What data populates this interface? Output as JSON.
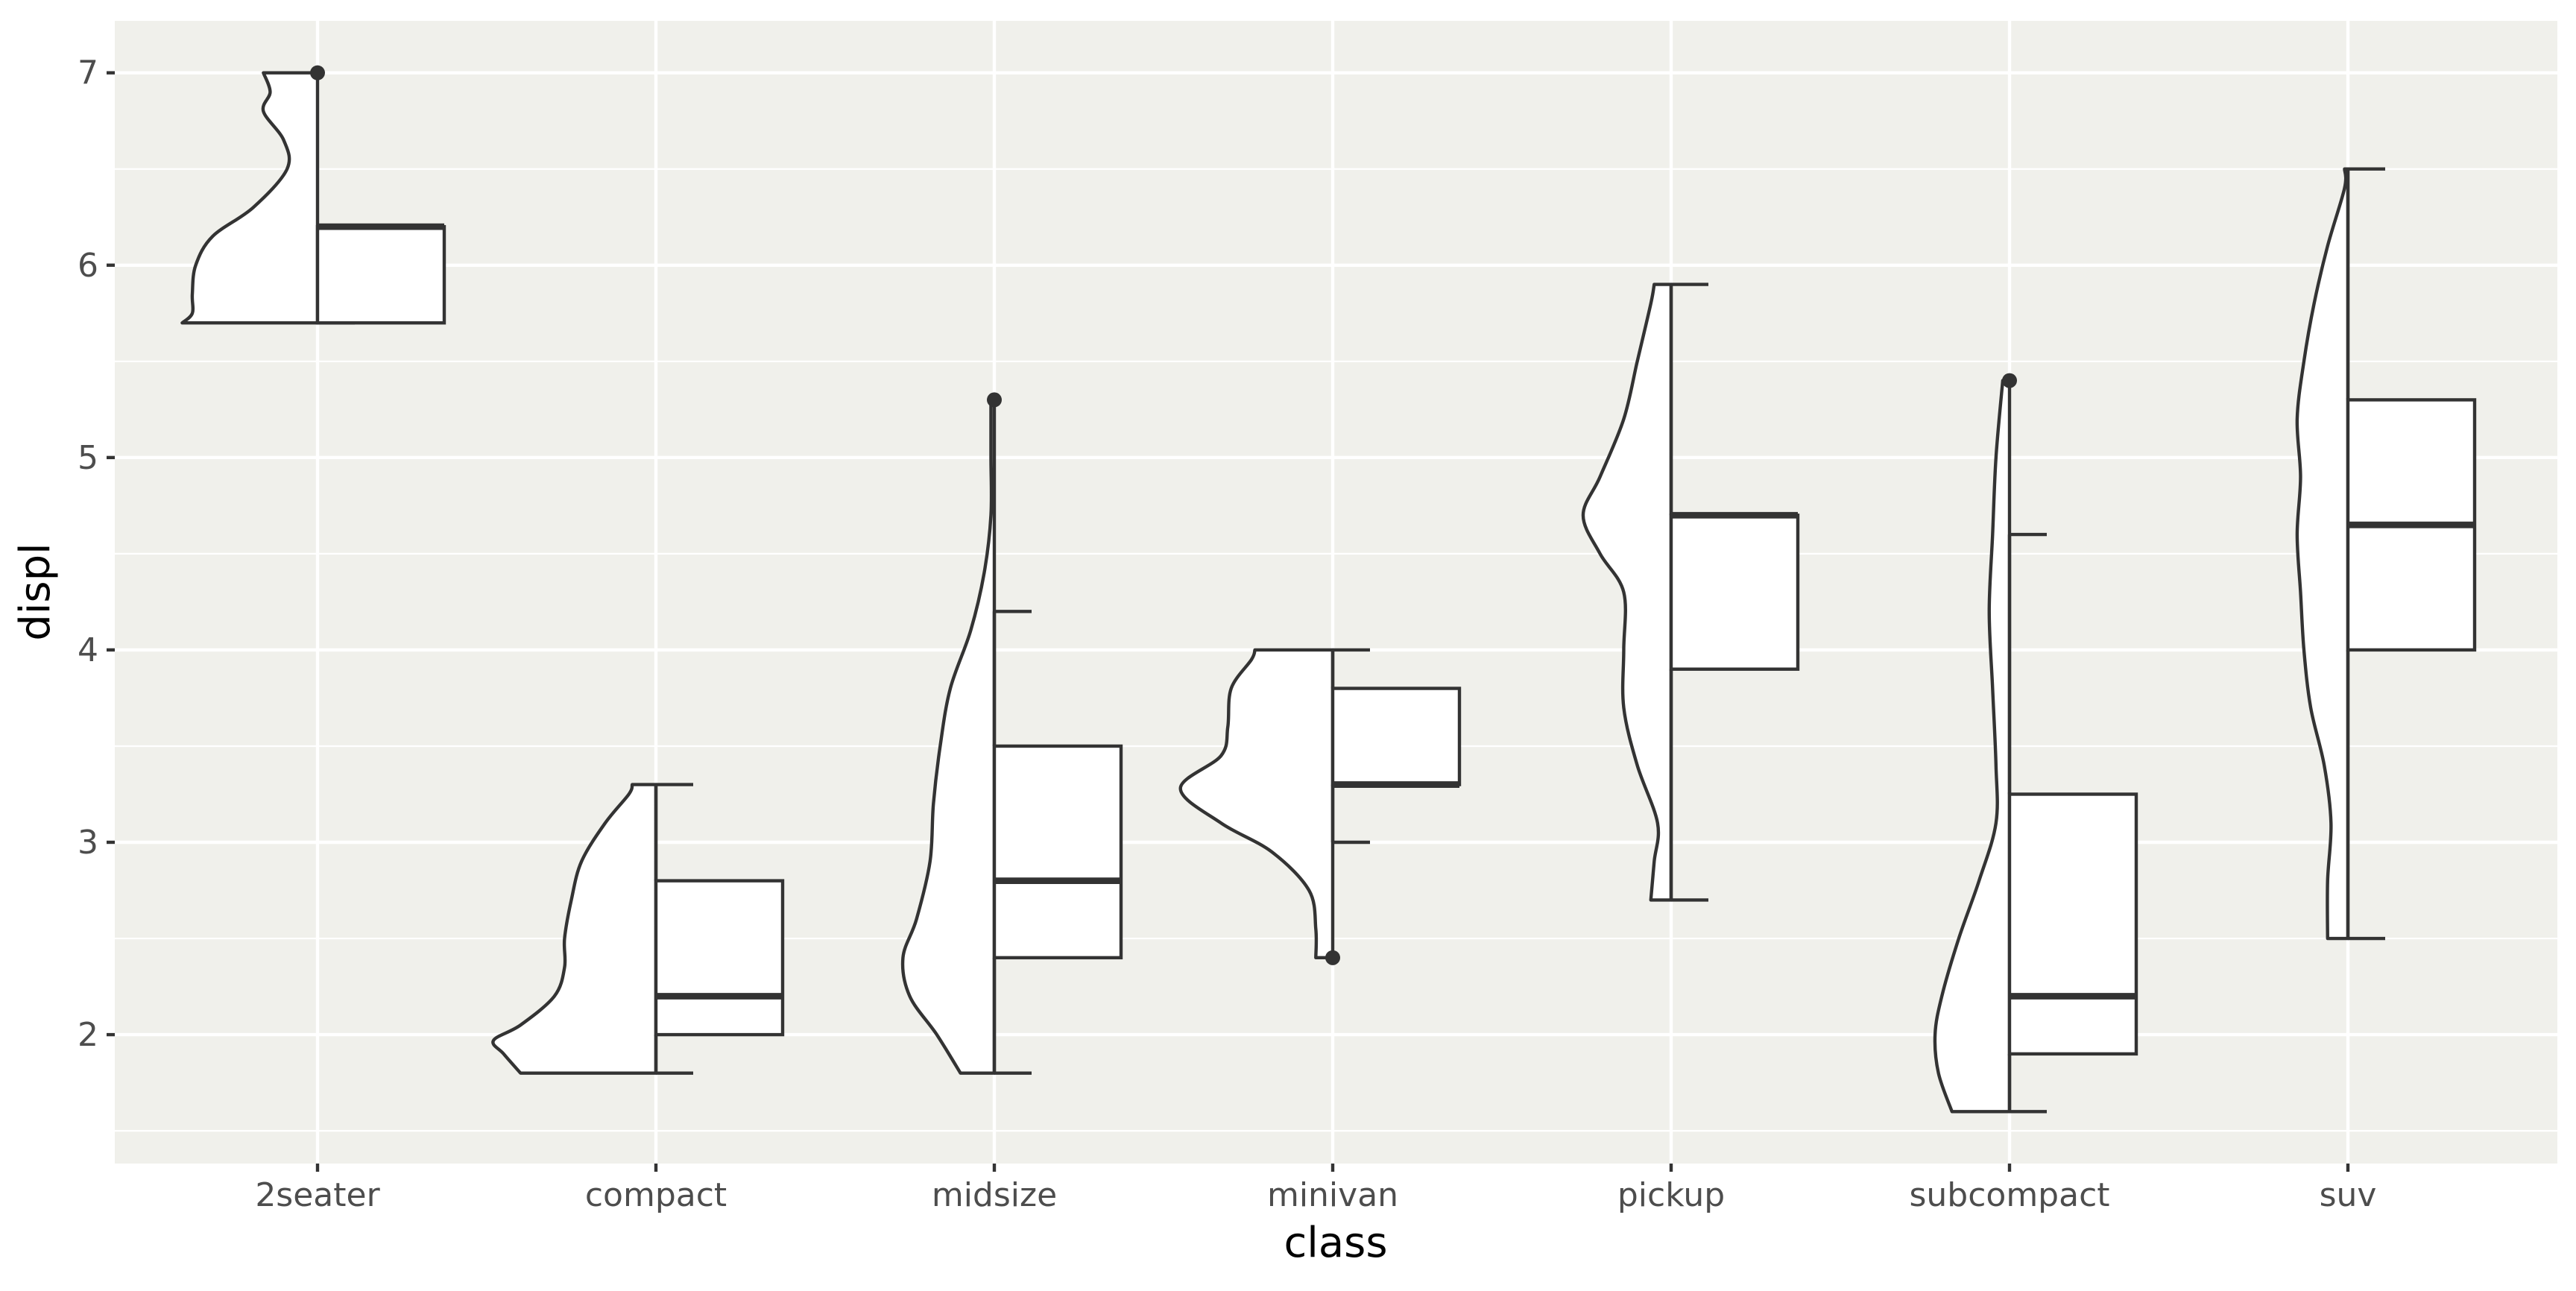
{
  "chart_data": {
    "type": "violin+box (half)",
    "xlabel": "class",
    "ylabel": "displ",
    "ylim": [
      1.33,
      7.27
    ],
    "y_ticks": [
      2,
      3,
      4,
      5,
      6,
      7
    ],
    "grid": true,
    "categories": [
      "2seater",
      "compact",
      "midsize",
      "minivan",
      "pickup",
      "subcompact",
      "suv"
    ],
    "series": [
      {
        "category": "2seater",
        "box": {
          "q1": 5.7,
          "median": 6.2,
          "q3": 6.2,
          "whisker_low": 5.7,
          "whisker_high": 6.2
        },
        "outliers": [
          7.0
        ],
        "violin": {
          "ymin": 5.7,
          "ymax": 7.0,
          "profile": [
            [
              5.7,
              0.4
            ],
            [
              5.75,
              0.37
            ],
            [
              5.85,
              0.37
            ],
            [
              6.0,
              0.36
            ],
            [
              6.15,
              0.31
            ],
            [
              6.3,
              0.19
            ],
            [
              6.5,
              0.09
            ],
            [
              6.65,
              0.1
            ],
            [
              6.8,
              0.16
            ],
            [
              6.9,
              0.14
            ],
            [
              7.0,
              0.16
            ]
          ]
        }
      },
      {
        "category": "compact",
        "box": {
          "q1": 2.0,
          "median": 2.2,
          "q3": 2.8,
          "whisker_low": 1.8,
          "whisker_high": 3.3
        },
        "outliers": [],
        "violin": {
          "ymin": 1.8,
          "ymax": 3.3,
          "profile": [
            [
              1.8,
              0.4
            ],
            [
              1.9,
              0.45
            ],
            [
              1.97,
              0.48
            ],
            [
              2.05,
              0.4
            ],
            [
              2.2,
              0.3
            ],
            [
              2.35,
              0.27
            ],
            [
              2.5,
              0.27
            ],
            [
              2.7,
              0.25
            ],
            [
              2.9,
              0.22
            ],
            [
              3.1,
              0.15
            ],
            [
              3.25,
              0.08
            ],
            [
              3.3,
              0.07
            ]
          ]
        }
      },
      {
        "category": "midsize",
        "box": {
          "q1": 2.4,
          "median": 2.8,
          "q3": 3.5,
          "whisker_low": 1.8,
          "whisker_high": 4.2
        },
        "outliers": [
          5.3
        ],
        "violin": {
          "ymin": 1.8,
          "ymax": 5.3,
          "profile": [
            [
              1.8,
              0.1
            ],
            [
              2.0,
              0.17
            ],
            [
              2.2,
              0.25
            ],
            [
              2.4,
              0.27
            ],
            [
              2.6,
              0.23
            ],
            [
              2.9,
              0.19
            ],
            [
              3.2,
              0.18
            ],
            [
              3.5,
              0.16
            ],
            [
              3.8,
              0.13
            ],
            [
              4.1,
              0.07
            ],
            [
              4.4,
              0.03
            ],
            [
              4.7,
              0.01
            ],
            [
              5.0,
              0.01
            ],
            [
              5.3,
              0.01
            ]
          ]
        }
      },
      {
        "category": "minivan",
        "box": {
          "q1": 3.3,
          "median": 3.3,
          "q3": 3.8,
          "whisker_low": 3.0,
          "whisker_high": 4.0
        },
        "outliers": [
          2.4
        ],
        "violin": {
          "ymin": 2.4,
          "ymax": 4.0,
          "profile": [
            [
              2.4,
              0.05
            ],
            [
              2.55,
              0.05
            ],
            [
              2.75,
              0.07
            ],
            [
              2.95,
              0.18
            ],
            [
              3.1,
              0.33
            ],
            [
              3.28,
              0.45
            ],
            [
              3.45,
              0.33
            ],
            [
              3.6,
              0.31
            ],
            [
              3.8,
              0.3
            ],
            [
              3.95,
              0.24
            ],
            [
              4.0,
              0.23
            ]
          ]
        }
      },
      {
        "category": "pickup",
        "box": {
          "q1": 3.9,
          "median": 4.7,
          "q3": 4.7,
          "whisker_low": 2.7,
          "whisker_high": 5.9
        },
        "outliers": [],
        "violin": {
          "ymin": 2.7,
          "ymax": 5.9,
          "profile": [
            [
              2.7,
              0.06
            ],
            [
              2.9,
              0.05
            ],
            [
              3.1,
              0.04
            ],
            [
              3.4,
              0.1
            ],
            [
              3.7,
              0.14
            ],
            [
              4.0,
              0.14
            ],
            [
              4.3,
              0.14
            ],
            [
              4.5,
              0.21
            ],
            [
              4.7,
              0.26
            ],
            [
              4.9,
              0.21
            ],
            [
              5.2,
              0.14
            ],
            [
              5.5,
              0.1
            ],
            [
              5.8,
              0.06
            ],
            [
              5.9,
              0.05
            ]
          ]
        }
      },
      {
        "category": "subcompact",
        "box": {
          "q1": 1.9,
          "median": 2.2,
          "q3": 3.25,
          "whisker_low": 1.6,
          "whisker_high": 4.6
        },
        "outliers": [
          5.4
        ],
        "violin": {
          "ymin": 1.6,
          "ymax": 5.4,
          "profile": [
            [
              1.6,
              0.17
            ],
            [
              1.8,
              0.21
            ],
            [
              2.0,
              0.22
            ],
            [
              2.2,
              0.2
            ],
            [
              2.5,
              0.15
            ],
            [
              2.8,
              0.09
            ],
            [
              3.1,
              0.04
            ],
            [
              3.4,
              0.04
            ],
            [
              3.8,
              0.05
            ],
            [
              4.2,
              0.06
            ],
            [
              4.6,
              0.05
            ],
            [
              5.0,
              0.04
            ],
            [
              5.4,
              0.02
            ]
          ]
        }
      },
      {
        "category": "suv",
        "box": {
          "q1": 4.0,
          "median": 4.65,
          "q3": 5.3,
          "whisker_low": 2.5,
          "whisker_high": 6.5
        },
        "outliers": [],
        "violin": {
          "ymin": 2.5,
          "ymax": 6.5,
          "profile": [
            [
              2.5,
              0.06
            ],
            [
              2.8,
              0.06
            ],
            [
              3.1,
              0.05
            ],
            [
              3.4,
              0.07
            ],
            [
              3.7,
              0.11
            ],
            [
              4.0,
              0.13
            ],
            [
              4.3,
              0.14
            ],
            [
              4.6,
              0.15
            ],
            [
              4.9,
              0.14
            ],
            [
              5.2,
              0.15
            ],
            [
              5.5,
              0.13
            ],
            [
              5.8,
              0.1
            ],
            [
              6.1,
              0.06
            ],
            [
              6.4,
              0.01
            ],
            [
              6.5,
              0.01
            ]
          ]
        }
      }
    ]
  }
}
